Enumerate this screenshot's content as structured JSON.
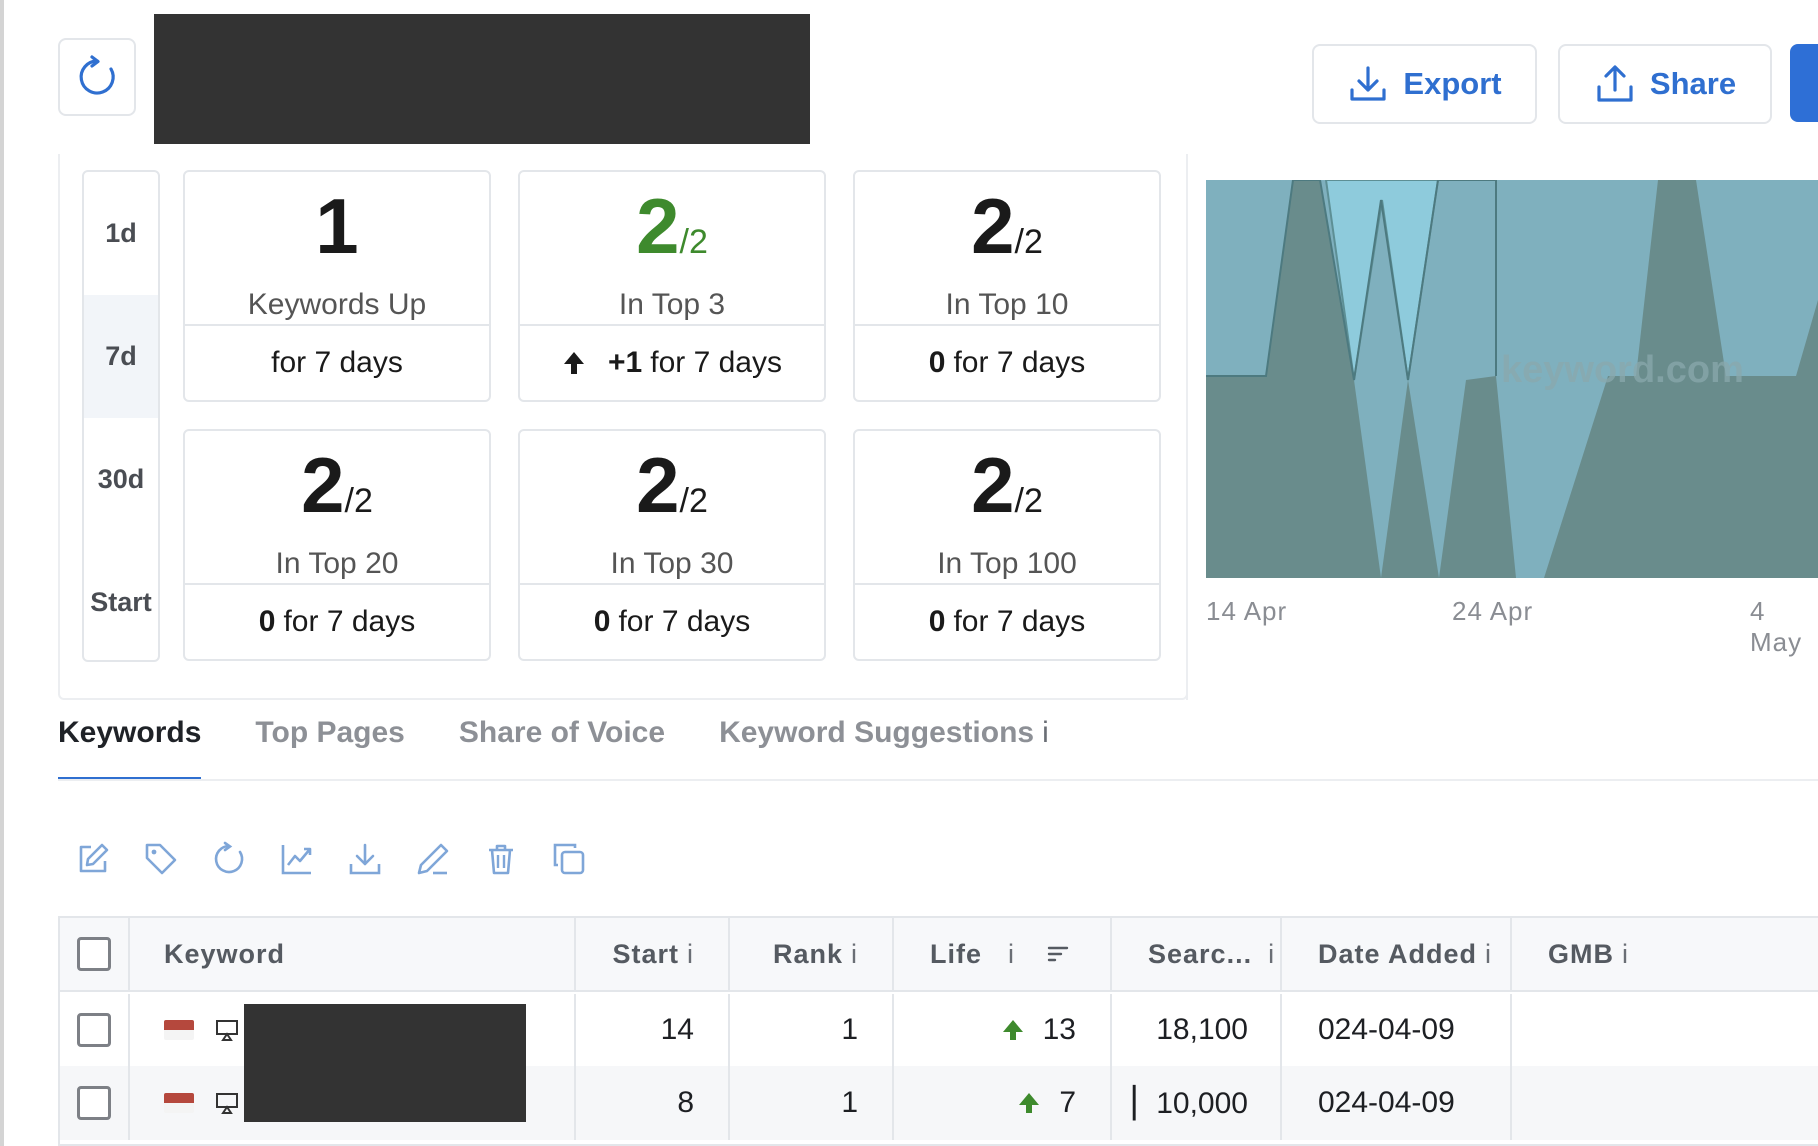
{
  "header": {
    "export_label": "Export",
    "share_label": "Share"
  },
  "periods": [
    "1d",
    "7d",
    "30d",
    "Start"
  ],
  "active_period": "7d",
  "cards": [
    {
      "value": "1",
      "denominator": "",
      "label": "Keywords Up",
      "change": "",
      "suffix": "for 7 days",
      "green": false
    },
    {
      "value": "2",
      "denominator": "/2",
      "label": "In Top 3",
      "change": "+1",
      "suffix": "for 7 days",
      "green": true
    },
    {
      "value": "2",
      "denominator": "/2",
      "label": "In Top 10",
      "change": "0",
      "suffix": "for 7 days",
      "green": false
    },
    {
      "value": "2",
      "denominator": "/2",
      "label": "In Top 20",
      "change": "0",
      "suffix": "for 7 days",
      "green": false
    },
    {
      "value": "2",
      "denominator": "/2",
      "label": "In Top 30",
      "change": "0",
      "suffix": "for 7 days",
      "green": false
    },
    {
      "value": "2",
      "denominator": "/2",
      "label": "In Top 100",
      "change": "0",
      "suffix": "for 7 days",
      "green": false
    }
  ],
  "chart": {
    "watermark": "keyword.com",
    "x_ticks": [
      "14 Apr",
      "24 Apr",
      "4 May"
    ]
  },
  "tabs": [
    "Keywords",
    "Top Pages",
    "Share of Voice",
    "Keyword Suggestions"
  ],
  "tabs_info": "i",
  "toolbar": [
    "edit-icon",
    "tag-icon",
    "refresh-icon",
    "chart-icon",
    "download-icon",
    "pencil-icon",
    "trash-icon",
    "copy-icon"
  ],
  "table": {
    "columns": {
      "keyword": "Keyword",
      "start": "Start",
      "rank": "Rank",
      "life": "Life",
      "search": "Searc...",
      "date_added": "Date Added",
      "gmb": "GMB",
      "info": "i"
    },
    "rows": [
      {
        "start": "14",
        "rank": "1",
        "life": "13",
        "search": "18,100",
        "date_added": "024-04-09",
        "gmb": ""
      },
      {
        "start": "8",
        "rank": "1",
        "life": "7",
        "search": "▏10,000",
        "date_added": "024-04-09",
        "gmb": ""
      }
    ]
  },
  "colors": {
    "accent": "#2f6fd0",
    "positive": "#3e8a2d",
    "chart_dark": "#6a8f8f",
    "chart_mid": "#7fb0be",
    "chart_light": "#8ecbdc"
  }
}
